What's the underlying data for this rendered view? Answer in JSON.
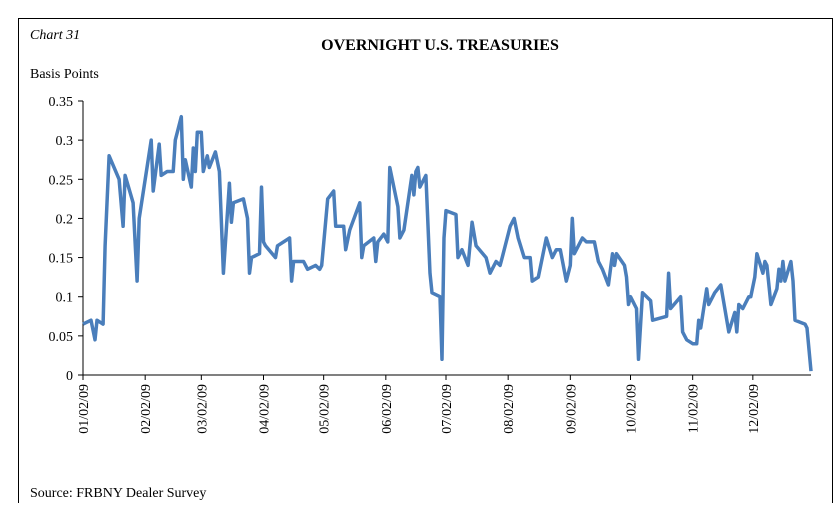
{
  "chart_data": {
    "type": "line",
    "label": "Chart 31",
    "title": "OVERNIGHT U.S. TREASURIES",
    "y_label": "Basis Points",
    "source": "Source: FRBNY Dealer Survey",
    "color": "#4a7ebb",
    "ylim": [
      0,
      0.35
    ],
    "yticks": [
      0,
      0.05,
      0.1,
      0.15,
      0.2,
      0.25,
      0.3,
      0.35
    ],
    "xlim": [
      "01/02/09",
      "12/31/09"
    ],
    "xticks": [
      "01/02/09",
      "02/02/09",
      "03/02/09",
      "04/02/09",
      "05/02/09",
      "06/02/09",
      "07/02/09",
      "08/02/09",
      "09/02/09",
      "10/02/09",
      "11/02/09",
      "12/02/09"
    ],
    "x": [
      "01/02/09",
      "01/06/09",
      "01/08/09",
      "01/09/09",
      "01/12/09",
      "01/13/09",
      "01/15/09",
      "01/20/09",
      "01/22/09",
      "01/23/09",
      "01/27/09",
      "01/29/09",
      "01/30/09",
      "02/02/09",
      "02/05/09",
      "02/06/09",
      "02/09/09",
      "02/10/09",
      "02/13/09",
      "02/16/09",
      "02/17/09",
      "02/20/09",
      "02/21/09",
      "02/22/09",
      "02/25/09",
      "02/26/09",
      "02/27/09",
      "02/28/09",
      "03/02/09",
      "03/03/09",
      "03/05/09",
      "03/06/09",
      "03/09/09",
      "03/11/09",
      "03/13/09",
      "03/16/09",
      "03/17/09",
      "03/18/09",
      "03/23/09",
      "03/25/09",
      "03/26/09",
      "03/27/09",
      "03/31/09",
      "04/01/09",
      "04/02/09",
      "04/03/09",
      "04/08/09",
      "04/09/09",
      "04/15/09",
      "04/16/09",
      "04/17/09",
      "04/22/09",
      "04/24/09",
      "04/28/09",
      "04/30/09",
      "05/01/09",
      "05/04/09",
      "05/07/09",
      "05/08/09",
      "05/12/09",
      "05/13/09",
      "05/15/09",
      "05/20/09",
      "05/21/09",
      "05/22/09",
      "05/27/09",
      "05/28/09",
      "05/29/09",
      "06/01/09",
      "06/03/09",
      "06/04/09",
      "06/08/09",
      "06/09/09",
      "06/11/09",
      "06/15/09",
      "06/16/09",
      "06/17/09",
      "06/18/09",
      "06/19/09",
      "06/22/09",
      "06/24/09",
      "06/25/09",
      "06/29/09",
      "06/30/09",
      "07/01/09",
      "07/02/09",
      "07/07/09",
      "07/08/09",
      "07/10/09",
      "07/13/09",
      "07/15/09",
      "07/17/09",
      "07/22/09",
      "07/24/09",
      "07/27/09",
      "07/29/09",
      "07/30/09",
      "08/03/09",
      "08/05/09",
      "08/07/09",
      "08/10/09",
      "08/13/09",
      "08/14/09",
      "08/17/09",
      "08/19/09",
      "08/21/09",
      "08/24/09",
      "08/26/09",
      "08/28/09",
      "08/31/09",
      "09/02/09",
      "09/03/09",
      "09/04/09",
      "09/08/09",
      "09/10/09",
      "09/14/09",
      "09/16/09",
      "09/18/09",
      "09/21/09",
      "09/23/09",
      "09/24/09",
      "09/25/09",
      "09/29/09",
      "09/30/09",
      "10/01/09",
      "10/02/09",
      "10/05/09",
      "10/06/09",
      "10/08/09",
      "10/12/09",
      "10/13/09",
      "10/20/09",
      "10/21/09",
      "10/22/09",
      "10/27/09",
      "10/28/09",
      "10/30/09",
      "11/02/09",
      "11/04/09",
      "11/05/09",
      "11/06/09",
      "11/09/09",
      "11/10/09",
      "11/13/09",
      "11/16/09",
      "11/18/09",
      "11/20/09",
      "11/23/09",
      "11/24/09",
      "11/25/09",
      "11/27/09",
      "11/30/09",
      "12/01/09",
      "12/03/09",
      "12/04/09",
      "12/07/09",
      "12/08/09",
      "12/09/09",
      "12/11/09",
      "12/14/09",
      "12/15/09",
      "12/16/09",
      "12/17/09",
      "12/18/09",
      "12/21/09",
      "12/22/09",
      "12/23/09",
      "12/28/09",
      "12/29/09",
      "12/31/09"
    ],
    "values": [
      0.065,
      0.07,
      0.045,
      0.07,
      0.065,
      0.165,
      0.28,
      0.25,
      0.19,
      0.255,
      0.22,
      0.12,
      0.2,
      0.25,
      0.3,
      0.235,
      0.295,
      0.255,
      0.26,
      0.26,
      0.3,
      0.33,
      0.25,
      0.275,
      0.24,
      0.29,
      0.26,
      0.31,
      0.31,
      0.26,
      0.28,
      0.265,
      0.285,
      0.26,
      0.13,
      0.245,
      0.195,
      0.22,
      0.225,
      0.2,
      0.13,
      0.15,
      0.155,
      0.24,
      0.17,
      0.165,
      0.15,
      0.165,
      0.175,
      0.12,
      0.145,
      0.145,
      0.135,
      0.14,
      0.135,
      0.14,
      0.225,
      0.235,
      0.19,
      0.19,
      0.16,
      0.185,
      0.22,
      0.15,
      0.165,
      0.175,
      0.145,
      0.17,
      0.18,
      0.17,
      0.265,
      0.215,
      0.175,
      0.185,
      0.255,
      0.23,
      0.26,
      0.265,
      0.24,
      0.255,
      0.13,
      0.105,
      0.1,
      0.02,
      0.175,
      0.21,
      0.205,
      0.15,
      0.16,
      0.14,
      0.195,
      0.165,
      0.15,
      0.13,
      0.145,
      0.14,
      0.15,
      0.19,
      0.2,
      0.175,
      0.15,
      0.15,
      0.12,
      0.125,
      0.15,
      0.175,
      0.15,
      0.16,
      0.16,
      0.12,
      0.14,
      0.2,
      0.155,
      0.175,
      0.17,
      0.17,
      0.145,
      0.135,
      0.115,
      0.155,
      0.14,
      0.155,
      0.14,
      0.125,
      0.09,
      0.1,
      0.085,
      0.02,
      0.105,
      0.095,
      0.07,
      0.075,
      0.13,
      0.085,
      0.1,
      0.055,
      0.045,
      0.04,
      0.04,
      0.07,
      0.06,
      0.11,
      0.09,
      0.105,
      0.115,
      0.085,
      0.055,
      0.08,
      0.055,
      0.09,
      0.085,
      0.1,
      0.1,
      0.125,
      0.155,
      0.13,
      0.145,
      0.14,
      0.09,
      0.11,
      0.135,
      0.12,
      0.145,
      0.12,
      0.145,
      0.12,
      0.07,
      0.065,
      0.06,
      0.005
    ]
  }
}
